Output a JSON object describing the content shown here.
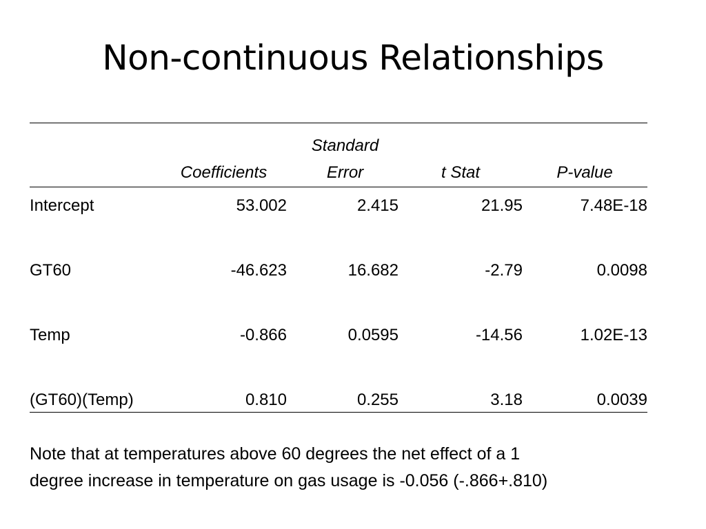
{
  "slide": {
    "title": "Non-continuous Relationships"
  },
  "table": {
    "headers": {
      "coefficients": "Coefficients",
      "std_error_line1": "Standard",
      "std_error_line2": "Error",
      "t_stat": "t Stat",
      "p_value": "P-value"
    },
    "rows": [
      {
        "label": "Intercept",
        "coefficient": "53.002",
        "std_error": "2.415",
        "t_stat": "21.95",
        "p_value": "7.48E-18"
      },
      {
        "label": "GT60",
        "coefficient": "-46.623",
        "std_error": "16.682",
        "t_stat": "-2.79",
        "p_value": "0.0098"
      },
      {
        "label": "Temp",
        "coefficient": "-0.866",
        "std_error": "0.0595",
        "t_stat": "-14.56",
        "p_value": "1.02E-13"
      },
      {
        "label": "(GT60)(Temp)",
        "coefficient": "0.810",
        "std_error": "0.255",
        "t_stat": "3.18",
        "p_value": "0.0039"
      }
    ]
  },
  "note": {
    "line1": "Note that at temperatures above 60 degrees the net effect of a 1",
    "line2": "degree increase in temperature on gas usage is -0.056 (-.866+.810)"
  }
}
